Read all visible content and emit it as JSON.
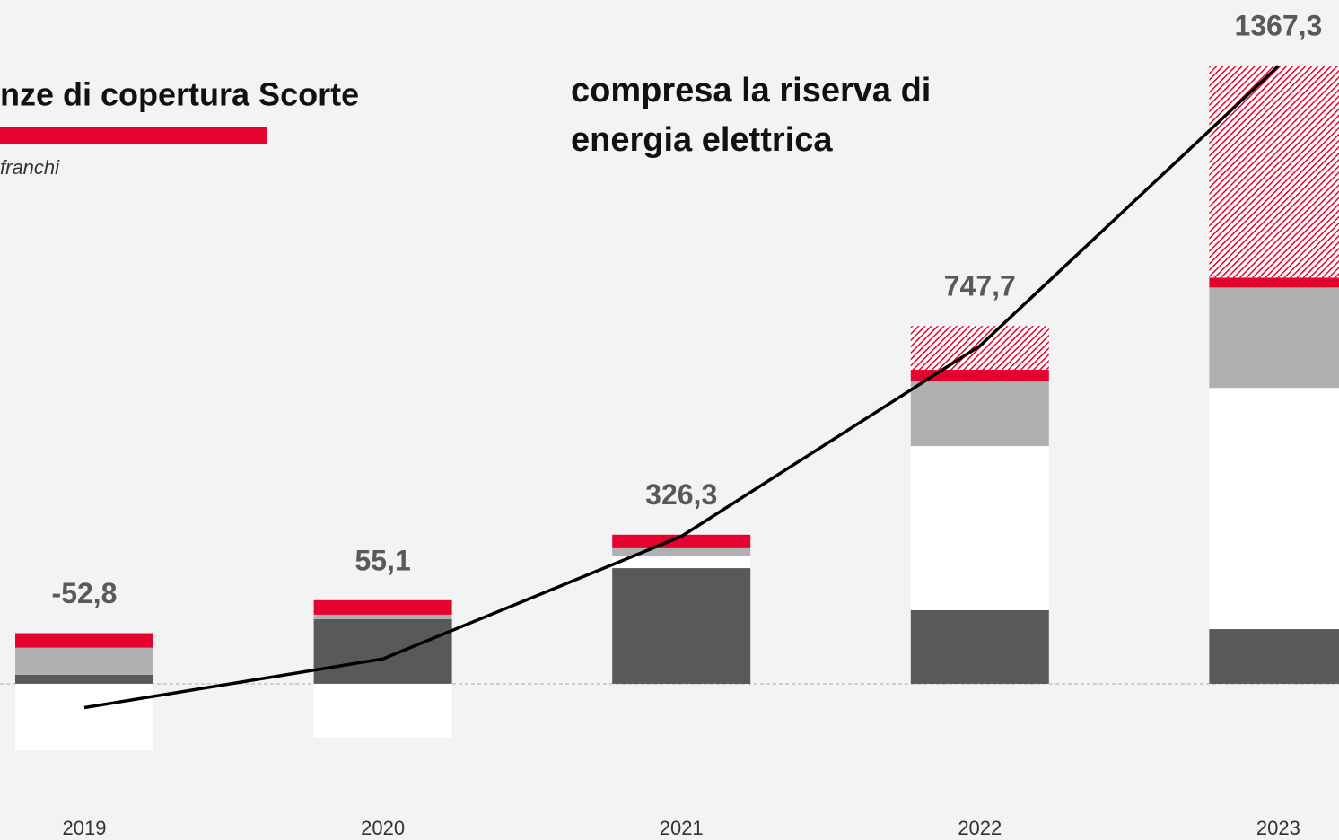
{
  "chart_data": {
    "type": "stacked_bar_line",
    "title": "nze di copertura Scorte",
    "subtitle": "franchi",
    "annotation": [
      "compresa la riserva di",
      "energia elettrica"
    ],
    "categories": [
      "2019",
      "2020",
      "2021",
      "2022",
      "2023"
    ],
    "series": [
      {
        "color": "#595959",
        "values": [
          20,
          143,
          256,
          163,
          121
        ]
      },
      {
        "color": "#ffffff",
        "values": [
          -147,
          -119,
          28,
          363,
          534
        ]
      },
      {
        "color": "#b0b0b0",
        "values": [
          60,
          10,
          16,
          143,
          222
        ]
      },
      {
        "color": "#e4032e",
        "values": [
          32,
          32,
          30,
          26,
          22
        ]
      },
      {
        "color": "#e4032e",
        "pattern": "hatch",
        "values": [
          0,
          0,
          0,
          97,
          469
        ]
      }
    ],
    "line": {
      "color": "#000000",
      "values": [
        -52.8,
        55.1,
        326.3,
        747.7,
        1367.3
      ],
      "value_labels": [
        "-52,8",
        "55,1",
        "326,3",
        "747,7",
        "1367,3"
      ]
    },
    "ylim": [
      -300,
      1500
    ],
    "zero_line": true
  }
}
